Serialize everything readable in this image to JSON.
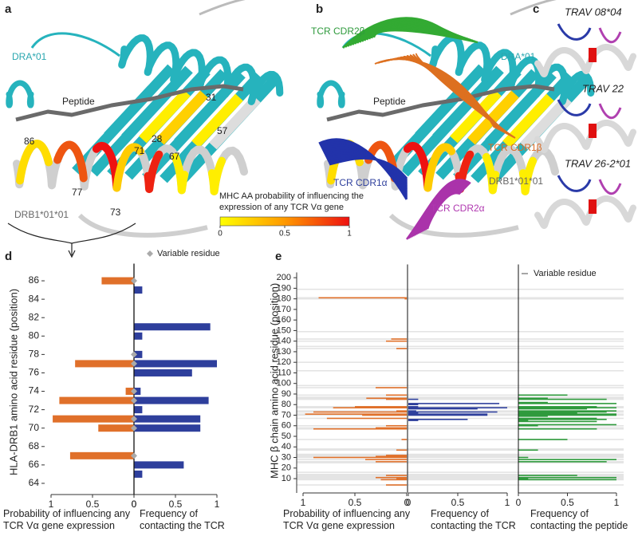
{
  "figure": {
    "panel_labels": [
      "a",
      "b",
      "c",
      "d",
      "e"
    ],
    "panel_a_labels": [
      "DRA*01",
      "Peptide",
      "31",
      "57",
      "86",
      "28",
      "71",
      "67",
      "77",
      "73",
      "DRB1*01*01"
    ],
    "panel_b_labels": [
      "TCR CDR2β",
      "DRA*01",
      "Peptide",
      "TCR CDR1β",
      "TCR CDR1α",
      "DRB1*01*01",
      "TCR CDR2α"
    ],
    "panel_c_labels": [
      "TRAV 08*04",
      "TRAV 22",
      "TRAV 26-2*01"
    ],
    "colorbar": {
      "title": "MHC AA probability of influencing the expression of any TCR Vα gene",
      "lim": [
        0,
        1
      ],
      "ticks": [
        0,
        0.5,
        1
      ]
    }
  },
  "chart_data": [
    {
      "type": "bar",
      "ylabel": "HLA-DRB1 amino acid residue (position)",
      "ylim": [
        63,
        87
      ],
      "yticks": [
        64,
        66,
        68,
        70,
        72,
        74,
        76,
        78,
        80,
        82,
        84,
        86
      ],
      "legend": "Variable residue",
      "legend_position": "top-right",
      "variable_residues": [
        86,
        78,
        77,
        74,
        73,
        71,
        70,
        67
      ],
      "series": [
        {
          "name": "Probability of influencing any TCR Vα gene expression",
          "color": "#e0702a",
          "xlim": [
            1,
            0
          ],
          "xticks": [
            1,
            0.5,
            0
          ],
          "positions": [
            86,
            77,
            74,
            73,
            71,
            70,
            67
          ],
          "values": [
            0.39,
            0.71,
            0.1,
            0.9,
            0.98,
            0.43,
            0.77
          ]
        },
        {
          "name": "Frequency of contacting the TCR",
          "color": "#2e3f9c",
          "xlim": [
            0,
            1
          ],
          "xticks": [
            0,
            0.5,
            1
          ],
          "positions": [
            85,
            81,
            80,
            78,
            77,
            76,
            74,
            73,
            72,
            71,
            70,
            66,
            65
          ],
          "values": [
            0.1,
            0.92,
            0.1,
            0.1,
            1,
            0.7,
            0.08,
            0.9,
            0.1,
            0.8,
            0.8,
            0.6,
            0.1
          ]
        }
      ]
    },
    {
      "type": "bar",
      "ylabel": "MHC β chain amino acid residue (position)",
      "ylim": [
        0,
        205
      ],
      "yticks": [
        10,
        20,
        30,
        40,
        50,
        60,
        70,
        80,
        90,
        100,
        110,
        120,
        130,
        140,
        150,
        160,
        170,
        180,
        190,
        200
      ],
      "legend": "Variable residue",
      "legend_position": "top-right",
      "variable_residues": [
        4,
        9,
        10,
        11,
        12,
        13,
        14,
        16,
        25,
        26,
        28,
        30,
        31,
        32,
        33,
        37,
        38,
        47,
        57,
        58,
        60,
        67,
        70,
        71,
        73,
        74,
        77,
        78,
        85,
        86,
        87,
        89,
        96,
        98,
        112,
        120,
        133,
        135,
        140,
        142,
        149,
        180,
        181,
        189
      ],
      "series": [
        {
          "name": "Probability of influencing any TCR Vα gene expression",
          "color": "#e0702a",
          "xlim": [
            1,
            0
          ],
          "xticks": [
            1,
            0.5,
            0
          ],
          "positions": [
            4,
            9,
            10,
            11,
            13,
            26,
            28,
            30,
            31,
            32,
            37,
            47,
            57,
            58,
            60,
            67,
            70,
            71,
            73,
            74,
            77,
            78,
            85,
            86,
            89,
            96,
            133,
            140,
            142,
            180,
            181
          ],
          "values": [
            0.2,
            0.25,
            0.1,
            0.3,
            0.2,
            0.3,
            0.4,
            0.9,
            0.3,
            0.2,
            0.1,
            0.05,
            0.9,
            0.3,
            0.2,
            0.77,
            0.43,
            0.98,
            0.9,
            0.1,
            0.71,
            0.5,
            0.2,
            0.39,
            0.2,
            0.3,
            0.1,
            0.2,
            0.15,
            0.02,
            0.85
          ]
        },
        {
          "name": "Frequency of contacting the TCR",
          "color": "#2e3f9c",
          "xlim": [
            0,
            1
          ],
          "xticks": [
            0,
            0.5,
            1
          ],
          "positions": [
            65,
            66,
            70,
            71,
            72,
            73,
            74,
            76,
            77,
            78,
            80,
            81,
            85
          ],
          "values": [
            0.1,
            0.6,
            0.8,
            0.8,
            0.1,
            0.9,
            0.08,
            0.7,
            1,
            0.1,
            0.1,
            0.92,
            0.1
          ]
        },
        {
          "name": "Frequency of contacting the peptide",
          "color": "#2e9a3c",
          "xlim": [
            0,
            1
          ],
          "xticks": [
            0,
            0.5,
            1
          ],
          "positions": [
            9,
            10,
            11,
            13,
            26,
            28,
            30,
            37,
            47,
            57,
            60,
            61,
            64,
            65,
            66,
            67,
            69,
            70,
            71,
            72,
            73,
            74,
            76,
            77,
            78,
            81,
            82,
            85,
            86,
            89
          ],
          "values": [
            1,
            0.1,
            1,
            0.6,
            0.9,
            1,
            0.1,
            0.2,
            0.5,
            0.8,
            0.2,
            1,
            0.8,
            0.1,
            0.9,
            0.8,
            0.3,
            1,
            1,
            0.6,
            0.9,
            1,
            0.7,
            1,
            0.8,
            1,
            0.3,
            0.9,
            0.3,
            0.5
          ]
        }
      ]
    }
  ]
}
